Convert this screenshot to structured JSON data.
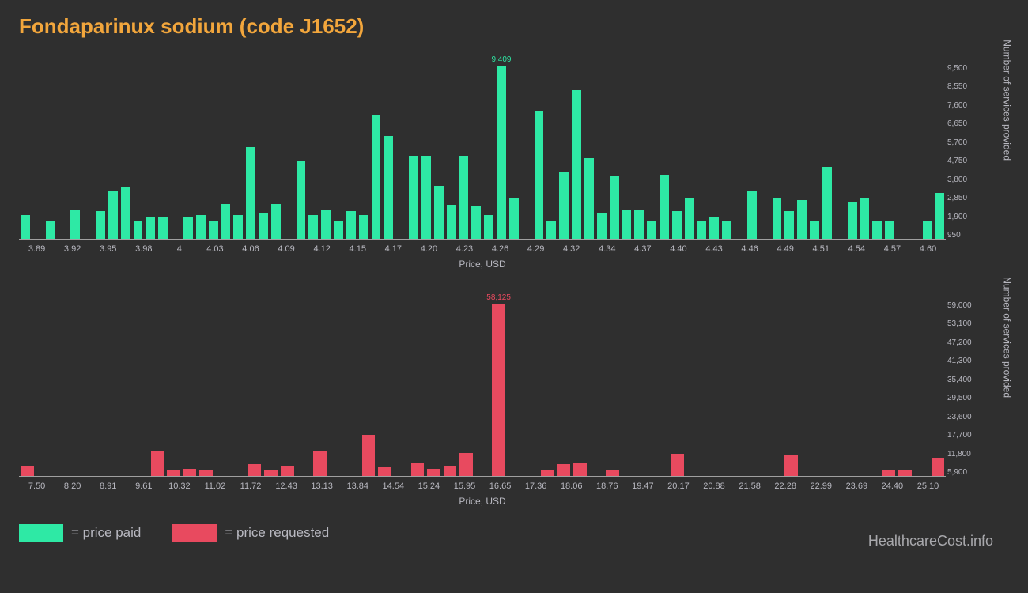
{
  "title": "Fondaparinux sodium (code J1652)",
  "watermark": "HealthcareCost.info",
  "legend": {
    "paid": {
      "color": "#2ee9a5",
      "label": "= price paid"
    },
    "requested": {
      "color": "#e84a5f",
      "label": "= price requested"
    }
  },
  "chart1": {
    "type": "bar",
    "color": "#2ee9a5",
    "background": "#2f2f2f",
    "axis_color": "#a0a0a0",
    "tick_color": "#b8b8c0",
    "tick_fontsize": 11,
    "x_label": "Price, USD",
    "y_label": "Number of services provided",
    "peak_label": "9,409",
    "ymax": 9500,
    "y_ticks": [
      "9,500",
      "8,550",
      "7,600",
      "6,650",
      "5,700",
      "4,750",
      "3,800",
      "2,850",
      "1,900",
      "950"
    ],
    "x_ticks": [
      "3.89",
      "3.92",
      "3.95",
      "3.98",
      "4",
      "4.03",
      "4.06",
      "4.09",
      "4.12",
      "4.15",
      "4.17",
      "4.20",
      "4.23",
      "4.26",
      "4.29",
      "4.32",
      "4.34",
      "4.37",
      "4.40",
      "4.43",
      "4.46",
      "4.49",
      "4.51",
      "4.54",
      "4.57",
      "4.60"
    ],
    "values": [
      1300,
      0,
      950,
      0,
      1600,
      0,
      1500,
      2600,
      2800,
      1000,
      1200,
      1200,
      0,
      1200,
      1300,
      950,
      1900,
      1300,
      5000,
      1400,
      1900,
      0,
      4200,
      1300,
      1600,
      950,
      1500,
      1300,
      6700,
      5600,
      0,
      4500,
      4500,
      2900,
      1850,
      4500,
      1800,
      1300,
      9409,
      2200,
      0,
      6900,
      950,
      3600,
      8100,
      4400,
      1400,
      3400,
      1600,
      1600,
      950,
      3500,
      1500,
      2200,
      950,
      1200,
      950,
      0,
      2600,
      0,
      2200,
      1500,
      2100,
      950,
      3900,
      0,
      2000,
      2200,
      950,
      1000,
      0,
      0,
      950,
      2500
    ]
  },
  "chart2": {
    "type": "bar",
    "color": "#e84a5f",
    "background": "#2f2f2f",
    "axis_color": "#a0a0a0",
    "tick_color": "#b8b8c0",
    "tick_fontsize": 11,
    "x_label": "Price, USD",
    "y_label": "Number of services provided",
    "peak_label": "58,125",
    "ymax": 59000,
    "y_ticks": [
      "59,000",
      "53,100",
      "47,200",
      "41,300",
      "35,400",
      "29,500",
      "23,600",
      "17,700",
      "11,800",
      "5,900"
    ],
    "x_ticks": [
      "7.50",
      "8.20",
      "8.91",
      "9.61",
      "10.32",
      "11.02",
      "11.72",
      "12.43",
      "13.13",
      "13.84",
      "14.54",
      "15.24",
      "15.95",
      "16.65",
      "17.36",
      "18.06",
      "18.76",
      "19.47",
      "20.17",
      "20.88",
      "21.58",
      "22.28",
      "22.99",
      "23.69",
      "24.40",
      "25.10"
    ],
    "values": [
      3200,
      0,
      0,
      0,
      0,
      0,
      0,
      0,
      8400,
      1800,
      2500,
      2000,
      0,
      0,
      4000,
      2200,
      3500,
      0,
      8200,
      0,
      0,
      14000,
      3000,
      0,
      4200,
      2500,
      3500,
      7800,
      0,
      58125,
      0,
      0,
      1800,
      4100,
      4500,
      0,
      2000,
      0,
      0,
      0,
      7400,
      0,
      0,
      0,
      0,
      0,
      0,
      7000,
      0,
      0,
      0,
      0,
      0,
      2200,
      2000,
      0,
      6200
    ]
  }
}
